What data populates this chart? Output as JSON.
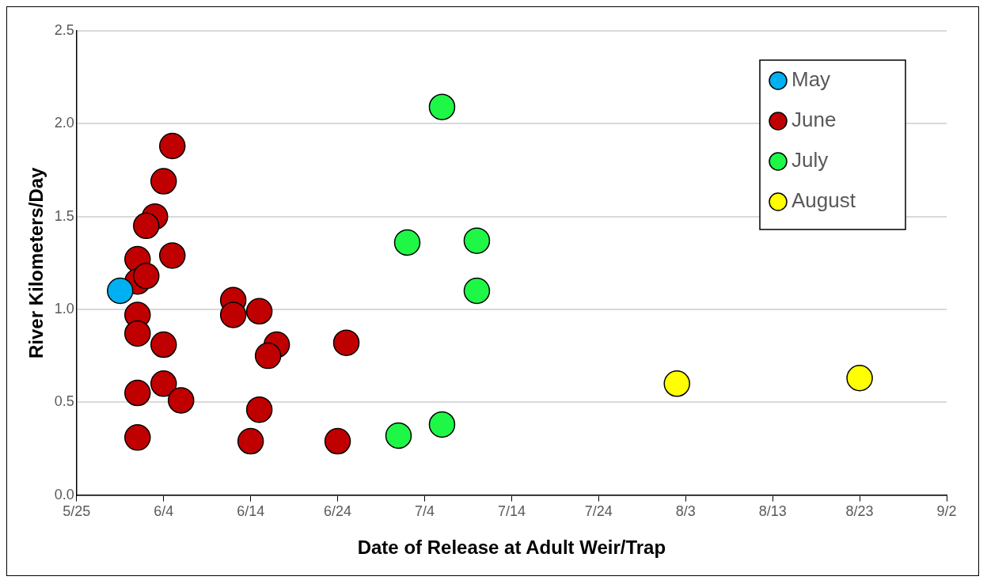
{
  "chart_data": {
    "type": "scatter",
    "xlabel": "Date of Release at Adult Weir/Trap",
    "ylabel": "River Kilometers/Day",
    "xlim": [
      "--05-25",
      "--09-02"
    ],
    "xticks": [
      {
        "value": "--05-25",
        "label": "5/25"
      },
      {
        "value": "--06-04",
        "label": "6/4"
      },
      {
        "value": "--06-14",
        "label": "6/14"
      },
      {
        "value": "--06-24",
        "label": "6/24"
      },
      {
        "value": "--07-04",
        "label": "7/4"
      },
      {
        "value": "--07-14",
        "label": "7/14"
      },
      {
        "value": "--07-24",
        "label": "7/24"
      },
      {
        "value": "--08-03",
        "label": "8/3"
      },
      {
        "value": "--08-13",
        "label": "8/13"
      },
      {
        "value": "--08-23",
        "label": "8/23"
      },
      {
        "value": "--09-02",
        "label": "9/2"
      }
    ],
    "ylim": [
      0,
      2.5
    ],
    "yticks": [
      {
        "value": 0,
        "label": "0.0"
      },
      {
        "value": 0.5,
        "label": "0.5"
      },
      {
        "value": 1,
        "label": "1.0"
      },
      {
        "value": 1.5,
        "label": "1.5"
      },
      {
        "value": 2,
        "label": "2.0"
      },
      {
        "value": 2.5,
        "label": "2.5"
      }
    ],
    "grid": "y",
    "legend": "top right",
    "marker": "circle",
    "series": [
      {
        "name": "May",
        "color": "#00b0f0",
        "x": [
          "--05-30"
        ],
        "values": [
          1.1
        ]
      },
      {
        "name": "June",
        "color": "#c00000",
        "x": [
          "--06-05",
          "--06-04",
          "--06-03",
          "--06-02",
          "--06-05",
          "--06-01",
          "--06-01",
          "--06-02",
          "--06-01",
          "--06-01",
          "--06-04",
          "--06-01",
          "--06-04",
          "--06-06",
          "--06-01",
          "--06-12",
          "--06-12",
          "--06-15",
          "--06-17",
          "--06-16",
          "--06-15",
          "--06-14",
          "--06-25",
          "--06-24"
        ],
        "values": [
          1.88,
          1.69,
          1.5,
          1.45,
          1.29,
          1.27,
          1.15,
          1.18,
          0.97,
          0.87,
          0.81,
          0.55,
          0.6,
          0.51,
          0.31,
          1.05,
          0.97,
          0.99,
          0.81,
          0.75,
          0.46,
          0.29,
          0.82,
          0.29
        ]
      },
      {
        "name": "July",
        "color": "#1ef746",
        "x": [
          "--07-06",
          "--07-02",
          "--07-10",
          "--07-10",
          "--07-01",
          "--07-06"
        ],
        "values": [
          2.09,
          1.36,
          1.37,
          1.1,
          0.32,
          0.38
        ]
      },
      {
        "name": "August",
        "color": "#ffff00",
        "x": [
          "--08-02",
          "--08-23"
        ],
        "values": [
          0.6,
          0.63
        ]
      }
    ]
  }
}
